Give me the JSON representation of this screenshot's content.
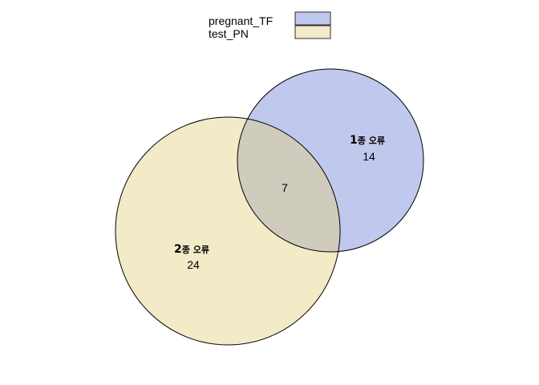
{
  "legend": {
    "items": [
      {
        "label": "pregnant_TF",
        "color": "#c0c8ed"
      },
      {
        "label": "test_PN",
        "color": "#f3eac8"
      }
    ]
  },
  "sets": {
    "a": {
      "name": "pregnant_TF",
      "color": "#c0c8ed"
    },
    "b": {
      "name": "test_PN",
      "color": "#f3eac8"
    }
  },
  "overlap_color": "#cfcbbd",
  "regions": {
    "a_only": {
      "prefix": "1",
      "suffix": "종 오류",
      "count": "14"
    },
    "b_only": {
      "prefix": "2",
      "suffix": "종 오류",
      "count": "24"
    },
    "intersection": {
      "count": "7"
    }
  }
}
